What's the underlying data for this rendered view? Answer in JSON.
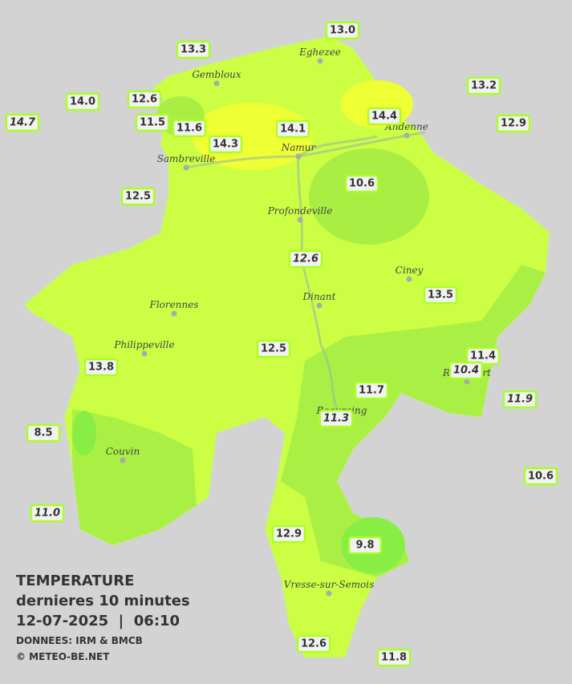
{
  "stations": [
    {
      "label": "13.0",
      "italic": false
    },
    {
      "label": "13.3",
      "italic": false
    },
    {
      "label": "13.2",
      "italic": false
    },
    {
      "label": "14.0",
      "italic": false
    },
    {
      "label": "12.6",
      "italic": false
    },
    {
      "label": "14.7",
      "italic": true
    },
    {
      "label": "11.5",
      "italic": false
    },
    {
      "label": "11.6",
      "italic": false
    },
    {
      "label": "14.4",
      "italic": false
    },
    {
      "label": "12.9",
      "italic": false
    },
    {
      "label": "14.1",
      "italic": false
    },
    {
      "label": "14.3",
      "italic": false
    },
    {
      "label": "10.6",
      "italic": false
    },
    {
      "label": "12.5",
      "italic": false
    },
    {
      "label": "12.6",
      "italic": true
    },
    {
      "label": "13.5",
      "italic": false
    },
    {
      "label": "12.5",
      "italic": false
    },
    {
      "label": "11.4",
      "italic": false
    },
    {
      "label": "10.4",
      "italic": true
    },
    {
      "label": "13.8",
      "italic": false
    },
    {
      "label": "11.7",
      "italic": false
    },
    {
      "label": "11.9",
      "italic": true
    },
    {
      "label": "11.3",
      "italic": true
    },
    {
      "label": "8.5",
      "italic": false
    },
    {
      "label": "10.6",
      "italic": false
    },
    {
      "label": "11.0",
      "italic": true
    },
    {
      "label": "12.9",
      "italic": false
    },
    {
      "label": "9.8",
      "italic": false
    },
    {
      "label": "12.6",
      "italic": false
    },
    {
      "label": "11.8",
      "italic": false
    }
  ],
  "cities": [
    "Eghezee",
    "Gembloux",
    "Andenne",
    "Namur",
    "Sambreville",
    "Profondeville",
    "Ciney",
    "Dinant",
    "Florennes",
    "Philippeville",
    "Rochefort",
    "Beauraing",
    "Couvin",
    "Vresse-sur-Semois"
  ],
  "legend": {
    "title": "TEMPERATURE",
    "subtitle": "dernieres 10 minutes",
    "datetime": "12-07-2025  |  06:10",
    "source": "DONNEES: IRM & BMCB",
    "copyright": "© METEO-BE.NET"
  }
}
